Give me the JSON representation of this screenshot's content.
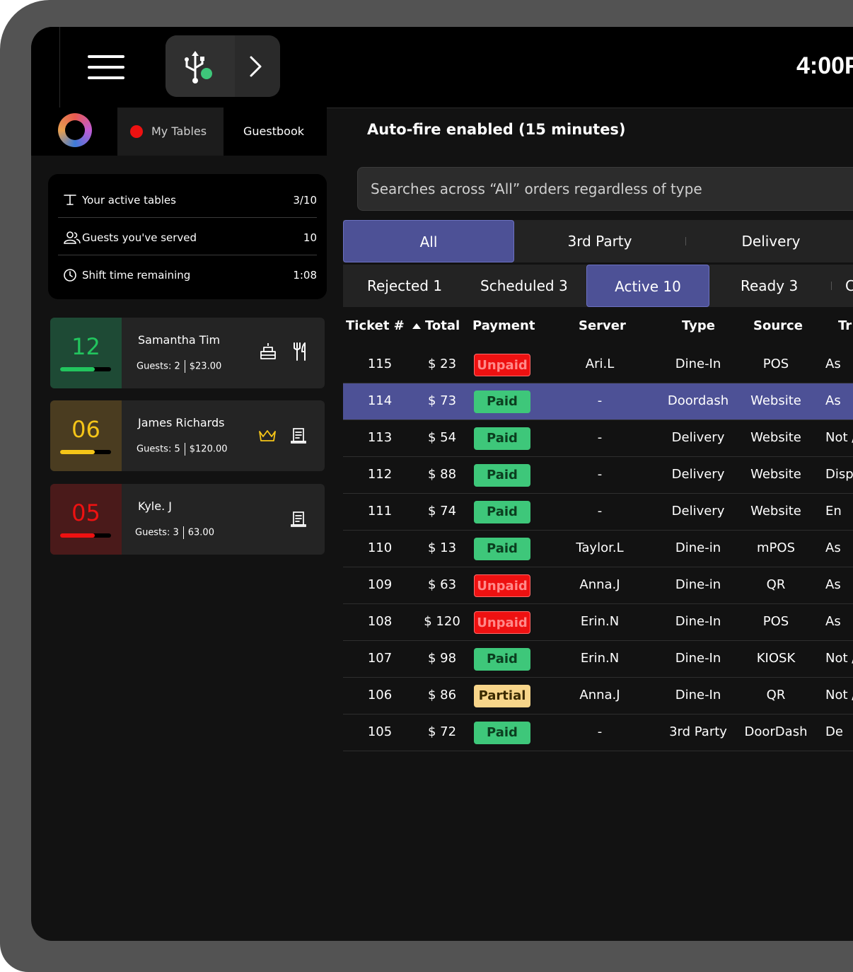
{
  "topbar": {
    "clock": "4:00P",
    "menu_icon": "hamburger-menu-icon",
    "usb_icon": "usb-icon",
    "usb_status_color": "#3ec77a",
    "forward_icon": "chevron-right-icon"
  },
  "nav": {
    "tabs": [
      {
        "label": "My Tables",
        "active": true,
        "dot_color": "#ee1111"
      },
      {
        "label": "Guestbook",
        "active": false
      }
    ]
  },
  "stats": [
    {
      "icon": "table-icon",
      "label": "Your active tables",
      "value": "3/10"
    },
    {
      "icon": "guests-icon",
      "label": "Guests you've served",
      "value": "10"
    },
    {
      "icon": "clock-icon",
      "label": "Shift time remaining",
      "value": "1:08"
    }
  ],
  "tables": [
    {
      "number": "12",
      "name": "Samantha Tim",
      "guests": "Guests: 2",
      "total": "$23.00",
      "progress": 0.68,
      "color": "#22c55e",
      "bg": "#1e4a35",
      "icons": [
        "cake-icon",
        "fork-knife-icon"
      ]
    },
    {
      "number": "06",
      "name": "James Richards",
      "guests": "Guests: 5",
      "total": "$120.00",
      "progress": 0.68,
      "color": "#f5c518",
      "bg": "#4a3c20",
      "icons": [
        "crown-icon",
        "receipt-icon"
      ]
    },
    {
      "number": "05",
      "name": "Kyle. J",
      "guests": "Guests: 3",
      "total": "63.00",
      "progress": 0.68,
      "color": "#ee1111",
      "bg": "#4a1a1a",
      "icons": [
        "receipt-icon"
      ]
    }
  ],
  "main": {
    "autofire": "Auto-fire enabled (15 minutes)",
    "search_placeholder": "Searches across “All” orders regardless of type",
    "type_tabs": [
      {
        "label": "All",
        "active": true
      },
      {
        "label": "3rd Party",
        "active": false
      },
      {
        "label": "Delivery",
        "active": false
      }
    ],
    "status_tabs": [
      {
        "label": "Rejected 1",
        "active": false
      },
      {
        "label": "Scheduled 3",
        "active": false
      },
      {
        "label": "Active 10",
        "active": true
      },
      {
        "label": "Ready 3",
        "active": false
      },
      {
        "label": "C",
        "active": false
      }
    ],
    "columns": [
      "Ticket #",
      "Total",
      "Payment",
      "Server",
      "Type",
      "Source",
      "Tr"
    ],
    "sort_icon": "sort-ascending-icon",
    "orders": [
      {
        "ticket": "115",
        "total": "$ 23",
        "payment": "Unpaid",
        "server": "Ari.L",
        "type": "Dine-In",
        "source": "POS",
        "tr": "As",
        "selected": false
      },
      {
        "ticket": "114",
        "total": "$ 73",
        "payment": "Paid",
        "server": "-",
        "type": "Doordash",
        "source": "Website",
        "tr": "As",
        "selected": true
      },
      {
        "ticket": "113",
        "total": "$ 54",
        "payment": "Paid",
        "server": "-",
        "type": "Delivery",
        "source": "Website",
        "tr": "Not /",
        "selected": false
      },
      {
        "ticket": "112",
        "total": "$ 88",
        "payment": "Paid",
        "server": "-",
        "type": "Delivery",
        "source": "Website",
        "tr": "Disp",
        "selected": false
      },
      {
        "ticket": "111",
        "total": "$ 74",
        "payment": "Paid",
        "server": "-",
        "type": "Delivery",
        "source": "Website",
        "tr": "En",
        "selected": false
      },
      {
        "ticket": "110",
        "total": "$ 13",
        "payment": "Paid",
        "server": "Taylor.L",
        "type": "Dine-in",
        "source": "mPOS",
        "tr": "As",
        "selected": false
      },
      {
        "ticket": "109",
        "total": "$ 63",
        "payment": "Unpaid",
        "server": "Anna.J",
        "type": "Dine-in",
        "source": "QR",
        "tr": "As",
        "selected": false
      },
      {
        "ticket": "108",
        "total": "$ 120",
        "payment": "Unpaid",
        "server": "Erin.N",
        "type": "Dine-In",
        "source": "POS",
        "tr": "As",
        "selected": false
      },
      {
        "ticket": "107",
        "total": "$ 98",
        "payment": "Paid",
        "server": "Erin.N",
        "type": "Dine-In",
        "source": "KIOSK",
        "tr": "Not /",
        "selected": false
      },
      {
        "ticket": "106",
        "total": "$ 86",
        "payment": "Partial",
        "server": "Anna.J",
        "type": "Dine-In",
        "source": "QR",
        "tr": "Not /",
        "selected": false
      },
      {
        "ticket": "105",
        "total": "$ 72",
        "payment": "Paid",
        "server": "-",
        "type": "3rd Party",
        "source": "DoorDash",
        "tr": "De",
        "selected": false
      }
    ]
  }
}
